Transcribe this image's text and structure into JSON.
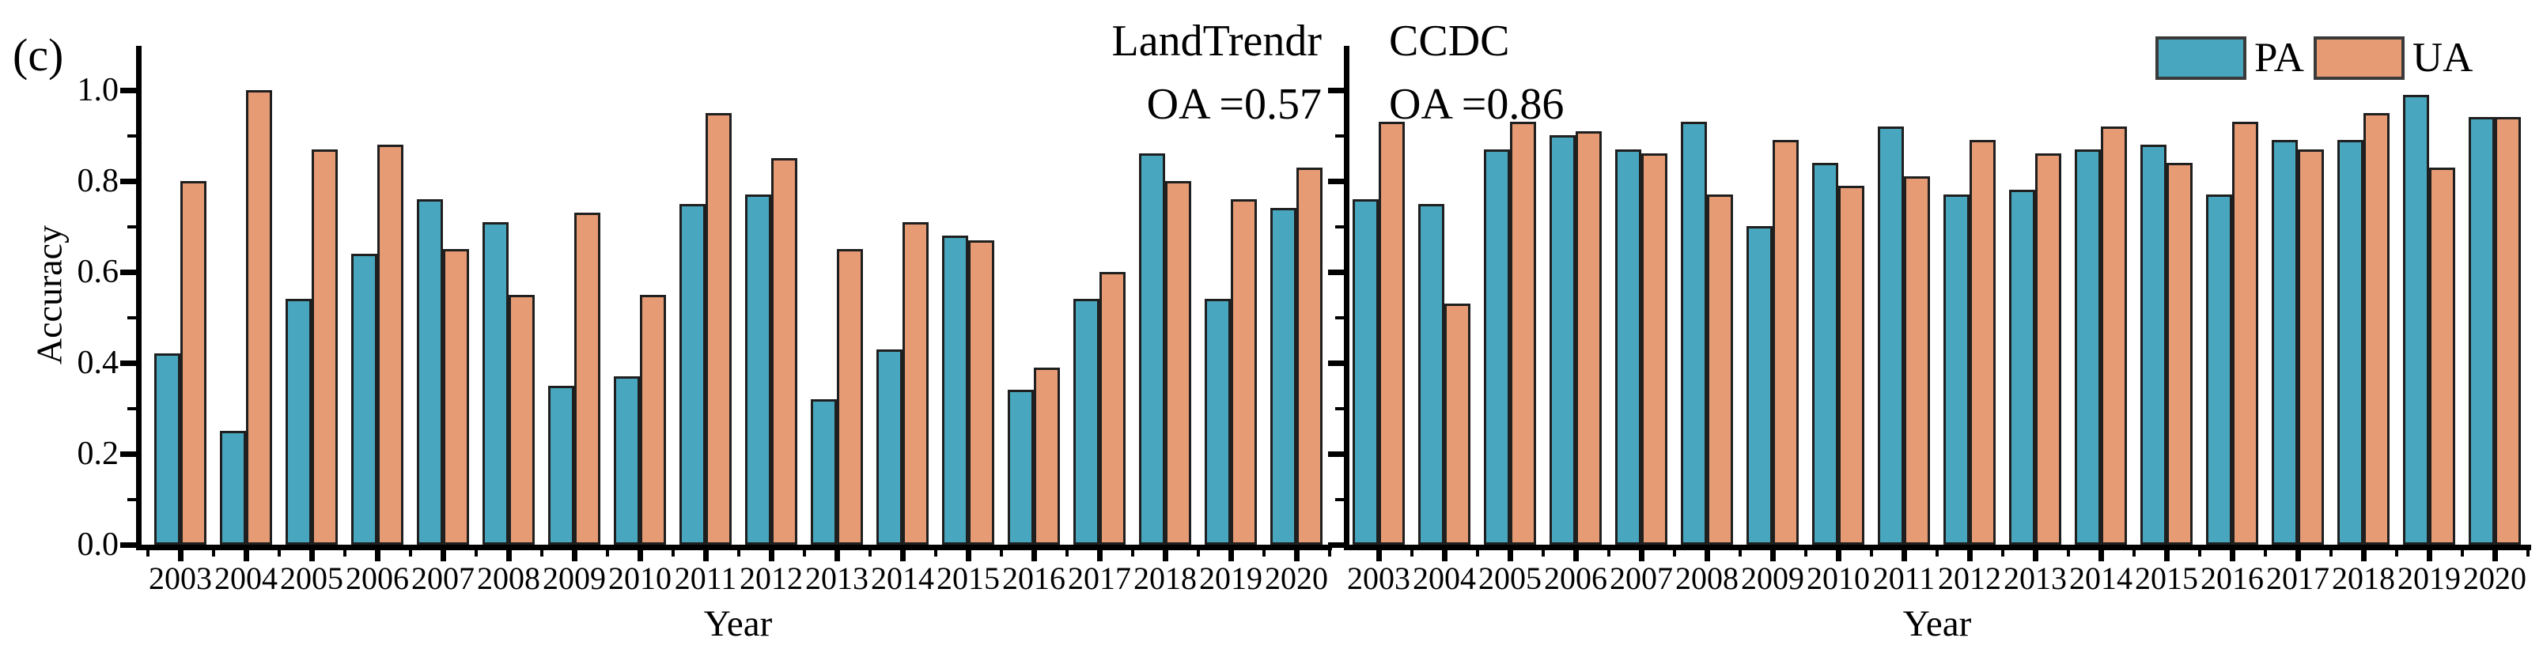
{
  "figure_label": "(c)",
  "axes": {
    "ylabel": "Accuracy",
    "xlabel": "Year",
    "y_tick_labels": [
      "0.0",
      "0.2",
      "0.4",
      "0.6",
      "0.8",
      "1.0"
    ],
    "y_tick_values": [
      0,
      0.2,
      0.4,
      0.6,
      0.8,
      1.0
    ],
    "y_minor_tick_values": [
      0.1,
      0.3,
      0.5,
      0.7,
      0.9
    ]
  },
  "legend": {
    "items": [
      {
        "label": "PA",
        "color": "#48A7BE"
      },
      {
        "label": "UA",
        "color": "#E69B74"
      }
    ]
  },
  "colors": {
    "pa": "#48A7BE",
    "ua": "#E69B74",
    "bar_border": "#1f1f1f",
    "axis": "#000000",
    "background": "#FFFFFF"
  },
  "chart_data": [
    {
      "type": "bar",
      "panel_title": "LandTrendr",
      "annotation": "OA =0.57",
      "xlabel": "Year",
      "ylabel": "Accuracy",
      "ylim": [
        0,
        1.1
      ],
      "grid": false,
      "categories": [
        "2003",
        "2004",
        "2005",
        "2006",
        "2007",
        "2008",
        "2009",
        "2010",
        "2011",
        "2012",
        "2013",
        "2014",
        "2015",
        "2016",
        "2017",
        "2018",
        "2019",
        "2020"
      ],
      "series": [
        {
          "name": "PA",
          "color": "#48A7BE",
          "values": [
            0.42,
            0.25,
            0.54,
            0.64,
            0.76,
            0.71,
            0.35,
            0.37,
            0.75,
            0.77,
            0.32,
            0.43,
            0.68,
            0.34,
            0.54,
            0.86,
            0.54,
            0.74
          ]
        },
        {
          "name": "UA",
          "color": "#E69B74",
          "values": [
            0.8,
            1.0,
            0.87,
            0.88,
            0.65,
            0.55,
            0.73,
            0.55,
            0.95,
            0.85,
            0.65,
            0.71,
            0.67,
            0.39,
            0.6,
            0.8,
            0.76,
            0.83
          ]
        }
      ]
    },
    {
      "type": "bar",
      "panel_title": "CCDC",
      "annotation": "OA =0.86",
      "xlabel": "Year",
      "ylabel": "Accuracy",
      "ylim": [
        0,
        1.1
      ],
      "grid": false,
      "categories": [
        "2003",
        "2004",
        "2005",
        "2006",
        "2007",
        "2008",
        "2009",
        "2010",
        "2011",
        "2012",
        "2013",
        "2014",
        "2015",
        "2016",
        "2017",
        "2018",
        "2019",
        "2020"
      ],
      "series": [
        {
          "name": "PA",
          "color": "#48A7BE",
          "values": [
            0.76,
            0.75,
            0.87,
            0.9,
            0.87,
            0.93,
            0.7,
            0.84,
            0.92,
            0.77,
            0.78,
            0.87,
            0.88,
            0.77,
            0.89,
            0.89,
            0.99,
            0.94
          ]
        },
        {
          "name": "UA",
          "color": "#E69B74",
          "values": [
            0.93,
            0.53,
            0.93,
            0.91,
            0.86,
            0.77,
            0.89,
            0.79,
            0.81,
            0.89,
            0.86,
            0.92,
            0.84,
            0.93,
            0.87,
            0.95,
            0.83,
            0.94
          ]
        }
      ]
    }
  ]
}
